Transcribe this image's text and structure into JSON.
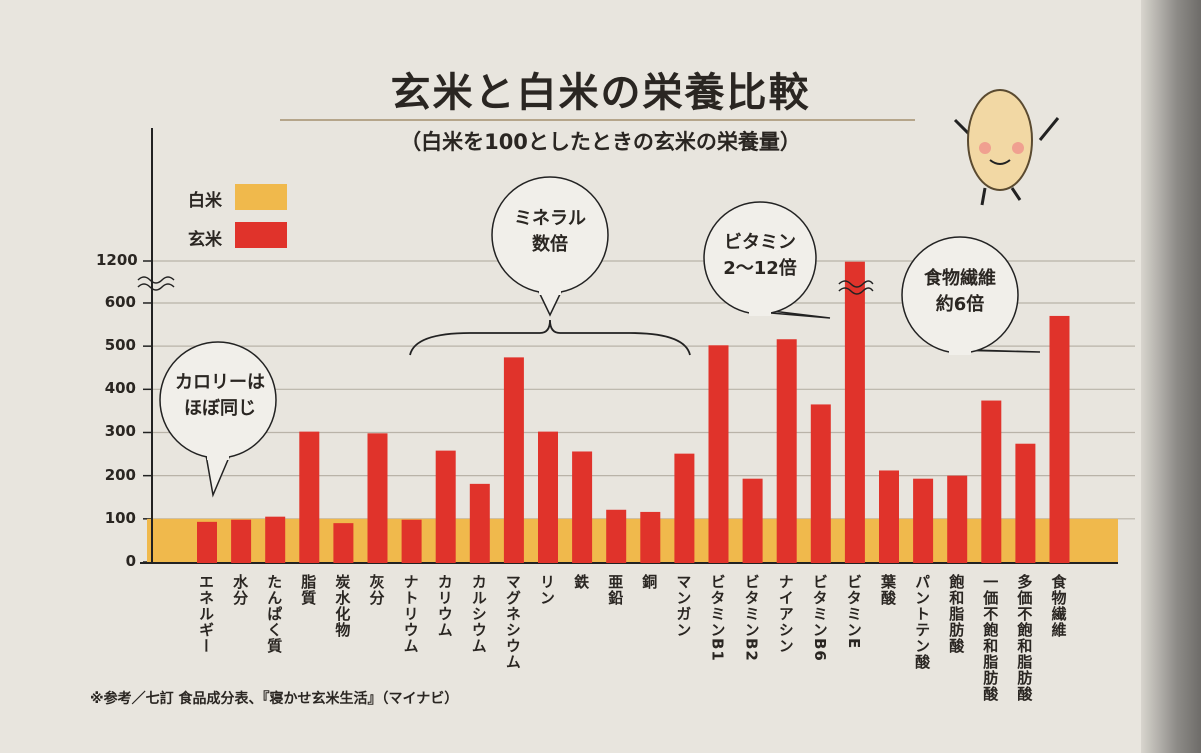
{
  "chart_data": {
    "type": "bar",
    "title": "玄米と白米の栄養比較",
    "subtitle": "（白米を100としたときの玄米の栄養量）",
    "yticks": [
      "0",
      "100",
      "200",
      "300",
      "400",
      "500",
      "600",
      "1200"
    ],
    "y_axis_break": "600–1200",
    "grid": true,
    "legend": {
      "placement": "top-left",
      "items": [
        {
          "name": "白米",
          "color": "#f0b94c"
        },
        {
          "name": "玄米",
          "color": "#e0332b"
        }
      ]
    },
    "categories": [
      "エネルギー",
      "水分",
      "たんぱく質",
      "脂質",
      "炭水化物",
      "灰分",
      "ナトリウム",
      "カリウム",
      "カルシウム",
      "マグネシウム",
      "リン",
      "鉄",
      "亜鉛",
      "銅",
      "マンガン",
      "ビタミンB1",
      "ビタミンB2",
      "ナイアシン",
      "ビタミンB6",
      "ビタミンE",
      "葉酸",
      "パントテン酸",
      "飽和脂肪酸",
      "一価不飽和脂肪酸",
      "多価不飽和脂肪酸",
      "食物繊維"
    ],
    "series": [
      {
        "name": "白米",
        "values": [
          100,
          100,
          100,
          100,
          100,
          100,
          100,
          100,
          100,
          100,
          100,
          100,
          100,
          100,
          100,
          100,
          100,
          100,
          100,
          100,
          100,
          100,
          100,
          100,
          100,
          100
        ]
      },
      {
        "name": "玄米",
        "values": [
          93,
          98,
          105,
          302,
          90,
          298,
          98,
          258,
          181,
          474,
          302,
          256,
          121,
          116,
          251,
          502,
          193,
          516,
          365,
          1190,
          212,
          193,
          200,
          374,
          274,
          570
        ]
      }
    ],
    "annotations": [
      {
        "text": "カロリーは\nほぼ同じ"
      },
      {
        "text": "ミネラル\n数倍"
      },
      {
        "text": "ビタミン\n2～12倍"
      },
      {
        "text": "食物繊維\n約6倍"
      }
    ],
    "source_note": "※参考／七訂 食品成分表、『寝かせ玄米生活』（マイナビ）"
  }
}
